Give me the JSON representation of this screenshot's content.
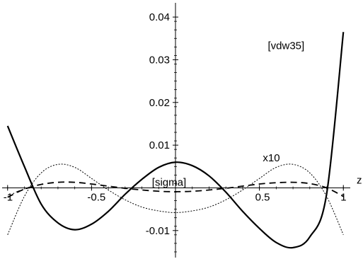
{
  "chart_data": {
    "type": "line",
    "title": "",
    "xlabel": "z",
    "ylabel": "",
    "xlim": [
      -1.02,
      1.02
    ],
    "ylim": [
      -0.016,
      0.043
    ],
    "grid": false,
    "x_ticks": [
      -1,
      -0.5,
      0.5,
      1
    ],
    "x_tick_labels": [
      "-1",
      "-0.5",
      "0.5",
      "1"
    ],
    "y_ticks": [
      -0.01,
      0.01,
      0.02,
      0.03,
      0.04
    ],
    "y_tick_labels": [
      "-0.01",
      "0.01",
      "0.02",
      "0.03",
      "0.04"
    ],
    "annotations": [
      {
        "text": "[vdw35]",
        "x": 0.55,
        "y": 0.0325
      },
      {
        "text": "x10",
        "x": 0.52,
        "y": 0.0062
      },
      {
        "text": "[sigma]",
        "x": -0.14,
        "y": 0.0005
      }
    ],
    "series": [
      {
        "style": "solid-thick",
        "x": [
          -1.0,
          -0.9,
          -0.8,
          -0.7,
          -0.6,
          -0.5,
          -0.4,
          -0.3,
          -0.2,
          -0.1,
          0.0,
          0.1,
          0.2,
          0.3,
          0.4,
          0.5,
          0.6,
          0.7,
          0.8,
          0.9,
          1.0
        ],
        "values": [
          0.0145,
          0.005,
          -0.0038,
          -0.0082,
          -0.0098,
          -0.0085,
          -0.0055,
          -0.0015,
          0.002,
          0.0048,
          0.006,
          0.0052,
          0.0028,
          -0.001,
          -0.0055,
          -0.0095,
          -0.0128,
          -0.014,
          -0.0115,
          -0.0015,
          0.0365
        ]
      },
      {
        "style": "dashed",
        "x": [
          -1.0,
          -0.9,
          -0.8,
          -0.7,
          -0.6,
          -0.5,
          -0.4,
          -0.3,
          -0.2,
          -0.1,
          0.0,
          0.1,
          0.2,
          0.3,
          0.4,
          0.5,
          0.6,
          0.7,
          0.8,
          0.9,
          1.0
        ],
        "values": [
          -0.0022,
          -0.0003,
          0.0008,
          0.0013,
          0.0013,
          0.0009,
          0.0004,
          -0.0001,
          -0.0005,
          -0.0008,
          -0.0009,
          -0.0008,
          -0.0005,
          -0.0001,
          0.0004,
          0.0009,
          0.0012,
          0.0013,
          0.001,
          0.0,
          -0.002
        ]
      },
      {
        "style": "dotted",
        "x": [
          -1.0,
          -0.9,
          -0.8,
          -0.7,
          -0.6,
          -0.5,
          -0.4,
          -0.3,
          -0.2,
          -0.1,
          0.0,
          0.1,
          0.2,
          0.3,
          0.4,
          0.5,
          0.6,
          0.7,
          0.8,
          0.9,
          1.0
        ],
        "values": [
          -0.011,
          -0.002,
          0.0035,
          0.0055,
          0.0048,
          0.0022,
          -0.0005,
          -0.0028,
          -0.0045,
          -0.0054,
          -0.0058,
          -0.0054,
          -0.0045,
          -0.0028,
          -0.0005,
          0.0022,
          0.0048,
          0.0055,
          0.0035,
          -0.002,
          -0.011
        ]
      },
      {
        "style": "dash-dot",
        "x": [
          -1.0,
          -0.95,
          -0.9,
          -0.85
        ],
        "values": [
          -0.0022,
          -0.001,
          -0.0003,
          0.0002
        ]
      }
    ]
  }
}
